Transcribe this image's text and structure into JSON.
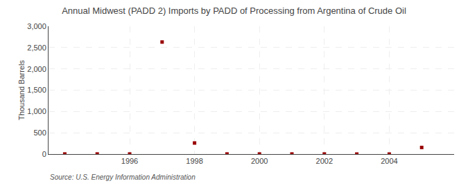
{
  "chart_data": {
    "type": "scatter",
    "title": "Annual Midwest (PADD 2) Imports by PADD of Processing from Argentina of Crude Oil",
    "ylabel": "Thousand Barrels",
    "annotation": "Source: U.S. Energy Information Administration",
    "x": [
      1994,
      1995,
      1996,
      1997,
      1998,
      1999,
      2000,
      2001,
      2002,
      2003,
      2004,
      2005
    ],
    "values": [
      2,
      2,
      2,
      2630,
      260,
      2,
      2,
      2,
      2,
      0,
      0,
      155
    ],
    "color": "#990000",
    "marker": "square",
    "xlim": [
      1993.5,
      2006.0
    ],
    "ylim": [
      0,
      3000
    ],
    "xticks": [
      1996,
      1998,
      2000,
      2002,
      2004
    ],
    "yticks": [
      0,
      500,
      {
        "value": 1000,
        "label": "1,000"
      },
      {
        "value": 1500,
        "label": "1,500"
      },
      {
        "value": 2000,
        "label": "2,000"
      },
      {
        "value": 2500,
        "label": "2,500"
      },
      {
        "value": 3000,
        "label": "3,000"
      }
    ],
    "grid": true
  }
}
